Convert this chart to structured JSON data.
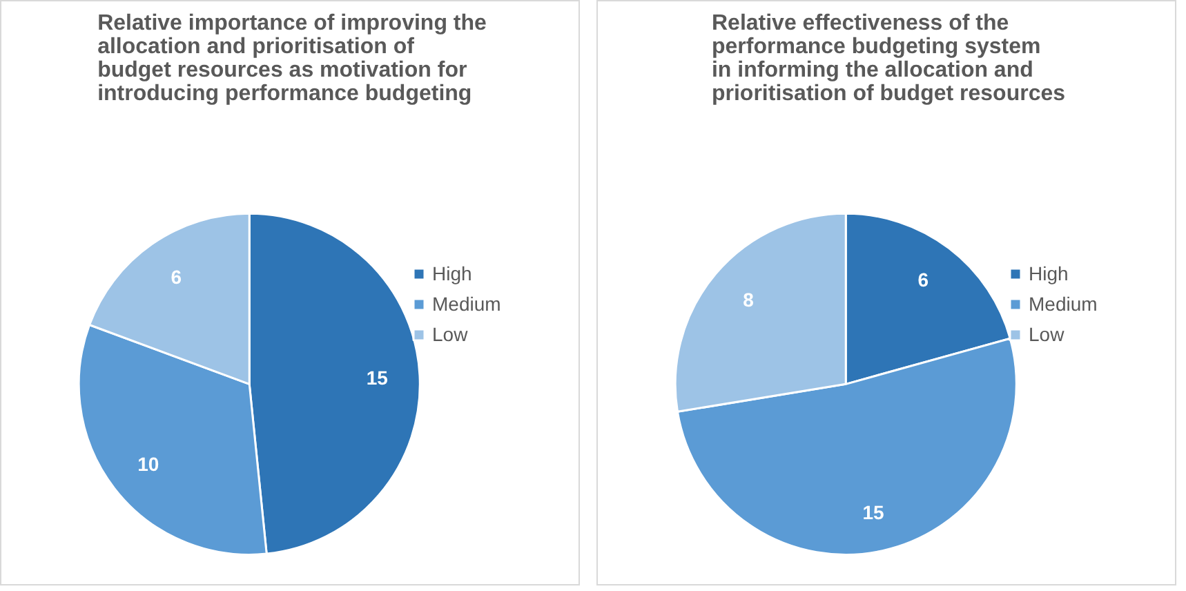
{
  "chart_data": [
    {
      "type": "pie",
      "title": "Relative importance of improving the\nallocation and prioritisation of\nbudget resources as motivation for\nintroducing performance budgeting",
      "categories": [
        "High",
        "Medium",
        "Low"
      ],
      "values": [
        15,
        10,
        6
      ],
      "colors": [
        "#2e75b6",
        "#5b9bd5",
        "#9dc3e6"
      ],
      "data_labels": true,
      "legend": "right"
    },
    {
      "type": "pie",
      "title": "Relative effectiveness of the\nperformance budgeting system\nin informing the allocation and\nprioritisation of budget resources",
      "categories": [
        "High",
        "Medium",
        "Low"
      ],
      "values": [
        6,
        15,
        8
      ],
      "colors": [
        "#2e75b6",
        "#5b9bd5",
        "#9dc3e6"
      ],
      "data_labels": true,
      "legend": "right"
    }
  ]
}
